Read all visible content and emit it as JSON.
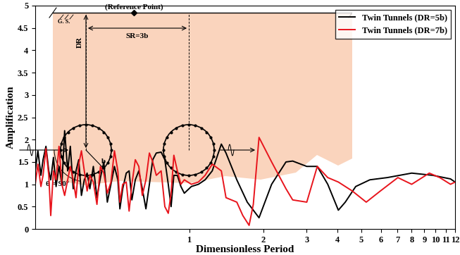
{
  "chart_data": {
    "type": "line",
    "x_label": "Dimensionless Period",
    "y_label": "Amplification",
    "log": "x",
    "xlim": [
      0.237,
      12
    ],
    "xticks": [
      1,
      2,
      3,
      4,
      5,
      6,
      7,
      8,
      9,
      10,
      11,
      12
    ],
    "ylim": [
      0,
      5
    ],
    "yticks": [
      0,
      0.5,
      1,
      1.5,
      2,
      2.5,
      3,
      3.5,
      4,
      4.5,
      5
    ],
    "legend": "upper right",
    "grid": false,
    "series": [
      {
        "name": "Twin Tunnels (DR=5b)",
        "color": "#000000",
        "x": [
          0.237,
          0.243,
          0.25,
          0.255,
          0.262,
          0.269,
          0.274,
          0.281,
          0.288,
          0.296,
          0.304,
          0.312,
          0.321,
          0.329,
          0.338,
          0.347,
          0.356,
          0.365,
          0.375,
          0.385,
          0.395,
          0.408,
          0.422,
          0.436,
          0.45,
          0.465,
          0.481,
          0.497,
          0.513,
          0.523,
          0.537,
          0.555,
          0.57,
          0.585,
          0.604,
          0.624,
          0.645,
          0.667,
          0.689,
          0.711,
          0.735,
          0.769,
          0.796,
          0.822,
          0.844,
          0.866,
          0.895,
          0.925,
          0.955,
          1.02,
          1.09,
          1.16,
          1.24,
          1.35,
          1.41,
          1.56,
          1.72,
          1.92,
          2.16,
          2.47,
          2.63,
          3.0,
          3.31,
          3.65,
          4.03,
          4.3,
          4.74,
          5.41,
          6.37,
          8.0,
          9.75,
          11.5,
          12
        ],
        "values": [
          1.3,
          1.75,
          1.2,
          1.55,
          1.85,
          1.3,
          1.1,
          1.6,
          0.95,
          1.4,
          1.0,
          2.2,
          1.3,
          1.85,
          0.9,
          1.3,
          1.55,
          0.75,
          1.1,
          1.25,
          0.9,
          1.4,
          0.7,
          1.15,
          1.5,
          0.6,
          1.0,
          1.4,
          1.1,
          0.45,
          0.9,
          1.25,
          1.3,
          0.65,
          1.1,
          1.3,
          0.9,
          0.45,
          1.0,
          1.55,
          1.7,
          1.72,
          1.55,
          1.0,
          0.5,
          1.2,
          1.2,
          0.95,
          0.8,
          0.95,
          1.0,
          1.1,
          1.3,
          1.9,
          1.7,
          1.1,
          0.6,
          0.25,
          1.0,
          1.5,
          1.52,
          1.4,
          1.4,
          1.0,
          0.42,
          0.6,
          0.95,
          1.1,
          1.15,
          1.25,
          1.2,
          1.12,
          1.05
        ]
      },
      {
        "name": "Twin Tunnels (DR=7b)",
        "color": "#e8141c",
        "x": [
          0.237,
          0.243,
          0.25,
          0.255,
          0.262,
          0.269,
          0.274,
          0.281,
          0.288,
          0.296,
          0.304,
          0.312,
          0.321,
          0.329,
          0.338,
          0.347,
          0.356,
          0.365,
          0.375,
          0.385,
          0.395,
          0.408,
          0.422,
          0.436,
          0.45,
          0.465,
          0.481,
          0.497,
          0.513,
          0.523,
          0.537,
          0.555,
          0.57,
          0.585,
          0.604,
          0.624,
          0.645,
          0.667,
          0.689,
          0.711,
          0.735,
          0.769,
          0.796,
          0.822,
          0.844,
          0.866,
          0.895,
          0.925,
          0.955,
          1.02,
          1.09,
          1.16,
          1.24,
          1.35,
          1.41,
          1.56,
          1.65,
          1.75,
          1.82,
          1.92,
          2.16,
          2.47,
          2.63,
          3.0,
          3.31,
          3.65,
          4.03,
          4.59,
          5.23,
          5.97,
          7.03,
          8.0,
          9.43,
          10.4,
          11.5,
          12
        ],
        "values": [
          1.0,
          1.45,
          0.95,
          1.2,
          1.8,
          1.2,
          0.3,
          1.3,
          1.1,
          1.85,
          1.0,
          0.75,
          1.1,
          1.4,
          1.1,
          0.7,
          1.45,
          1.75,
          1.3,
          0.85,
          1.2,
          1.05,
          0.55,
          1.4,
          1.25,
          0.8,
          1.05,
          1.75,
          1.3,
          0.6,
          1.0,
          1.05,
          0.4,
          1.0,
          1.55,
          1.4,
          0.75,
          1.1,
          1.7,
          1.5,
          1.2,
          1.3,
          0.5,
          0.35,
          0.8,
          1.65,
          1.3,
          1.0,
          1.1,
          1.0,
          1.05,
          1.2,
          1.45,
          1.3,
          0.7,
          0.6,
          0.3,
          0.08,
          0.55,
          2.05,
          1.5,
          0.9,
          0.65,
          0.6,
          1.4,
          1.15,
          1.05,
          0.85,
          0.6,
          0.85,
          1.15,
          1.0,
          1.25,
          1.15,
          1.0,
          1.05
        ]
      }
    ],
    "inset": {
      "reference_point": "(Reference Point)",
      "ground_surface": "G. S.",
      "depth": "DR",
      "spacing": "SR=3b",
      "radius": "b",
      "angle": "θ = 90°"
    }
  }
}
